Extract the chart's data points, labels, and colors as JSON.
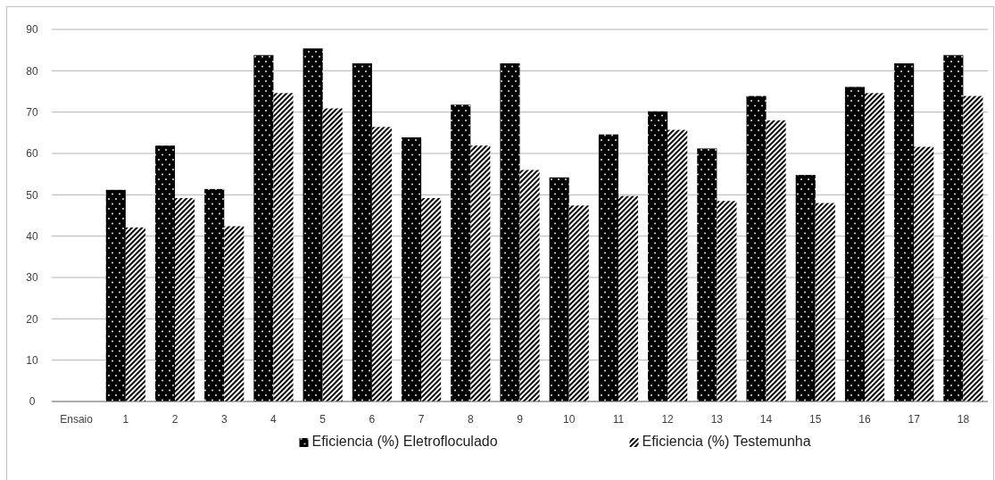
{
  "chart_data": {
    "type": "bar",
    "categories": [
      "Ensaio",
      "1",
      "2",
      "3",
      "4",
      "5",
      "6",
      "7",
      "8",
      "9",
      "10",
      "11",
      "12",
      "13",
      "14",
      "15",
      "16",
      "17",
      "18"
    ],
    "series": [
      {
        "name": "Eficiencia (%) Eletrofloculado",
        "color": "#000000",
        "values": [
          null,
          51.2,
          61.9,
          51.4,
          83.8,
          85.4,
          81.8,
          63.9,
          71.8,
          81.8,
          54.2,
          64.6,
          70.2,
          61.2,
          73.9,
          54.8,
          76.1,
          81.8,
          83.8
        ]
      },
      {
        "name": "Eficiencia (%) Testemunha",
        "color": "#000000",
        "values": [
          null,
          42.1,
          49.2,
          42.4,
          74.6,
          70.9,
          66.4,
          49.2,
          61.9,
          56.0,
          47.4,
          49.7,
          65.7,
          48.5,
          68.0,
          48.0,
          74.6,
          61.6,
          73.9
        ]
      }
    ],
    "ylim": [
      0,
      90
    ],
    "yticks": [
      0,
      10,
      20,
      30,
      40,
      50,
      60,
      70,
      80,
      90
    ],
    "grid": "y",
    "legend": "bottom"
  }
}
